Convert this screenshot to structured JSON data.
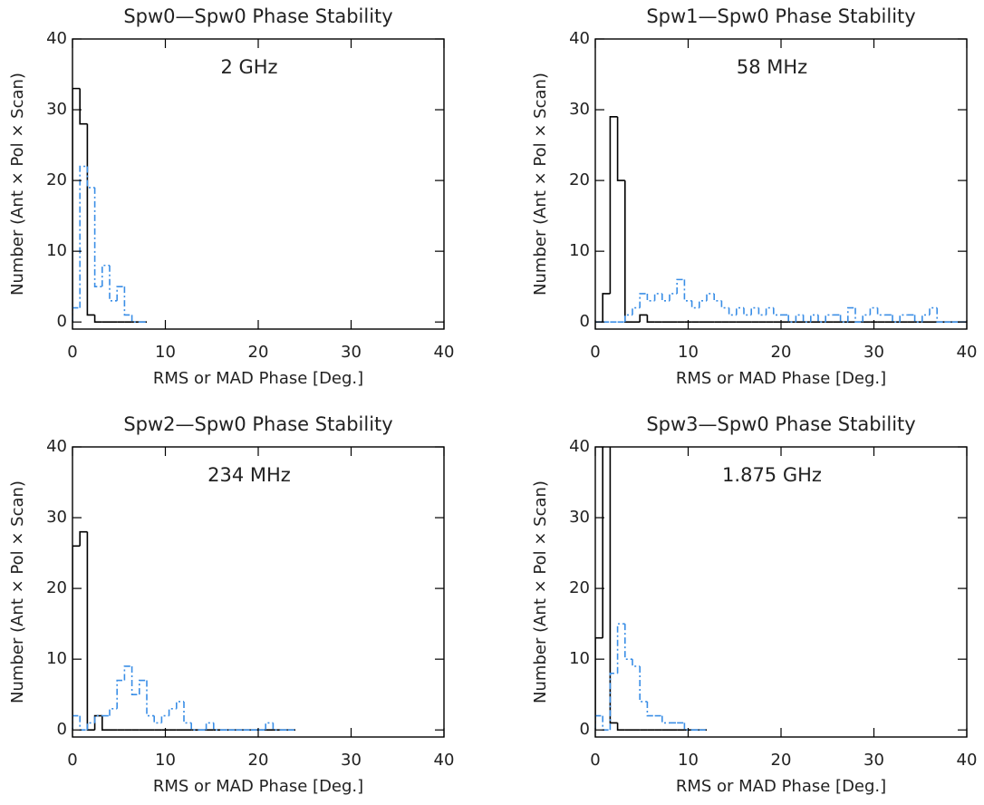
{
  "chart_data": [
    {
      "type": "histogram",
      "title": "Spw0—Spw0 Phase Stability",
      "annotation": "2 GHz",
      "xlabel": "RMS or MAD Phase [Deg.]",
      "ylabel": "Number (Ant × Pol × Scan)",
      "bins": [
        0,
        0.8,
        1.6,
        2.4,
        3.2,
        4.0,
        4.8,
        5.6,
        6.4,
        7.2,
        8.0
      ],
      "series": [
        {
          "color": "#000000",
          "linestyle": "solid",
          "values": [
            33,
            28,
            1,
            0,
            0,
            0,
            0,
            0,
            0,
            0
          ]
        },
        {
          "color": "#3a8ee6",
          "linestyle": "dashdot",
          "values": [
            2,
            22,
            19,
            5,
            8,
            3,
            5,
            1,
            0,
            0
          ]
        }
      ],
      "xlim": [
        0,
        40
      ],
      "ylim": [
        -1,
        40
      ],
      "xticks": [
        0,
        10,
        20,
        30,
        40
      ],
      "yticks": [
        0,
        10,
        20,
        30,
        40
      ]
    },
    {
      "type": "histogram",
      "title": "Spw1—Spw0 Phase Stability",
      "annotation": "58 MHz",
      "xlabel": "RMS or MAD Phase [Deg.]",
      "ylabel": "Number (Ant × Pol × Scan)",
      "bins": [
        0,
        0.8,
        1.6,
        2.4,
        3.2,
        4.0,
        4.8,
        5.6,
        6.4,
        7.2,
        8.0,
        8.8,
        9.6,
        10.4,
        11.2,
        12.0,
        12.8,
        13.6,
        14.4,
        15.2,
        16.0,
        16.8,
        17.6,
        18.4,
        19.2,
        20.0,
        20.8,
        21.6,
        22.4,
        23.2,
        24.0,
        24.8,
        25.6,
        26.4,
        27.2,
        28.0,
        28.8,
        29.6,
        30.4,
        31.2,
        32.0,
        32.8,
        33.6,
        34.4,
        35.2,
        36.0,
        36.8,
        37.6,
        38.4,
        39.2,
        40.0
      ],
      "series": [
        {
          "color": "#000000",
          "linestyle": "solid",
          "values": [
            0,
            4,
            29,
            20,
            0,
            0,
            1,
            0,
            0,
            0,
            0,
            0,
            0,
            0,
            0,
            0,
            0,
            0,
            0,
            0,
            0,
            0,
            0,
            0,
            0,
            0,
            0,
            0,
            0,
            0,
            0,
            0,
            0,
            0,
            0,
            0,
            0,
            0,
            0,
            0,
            0,
            0,
            0,
            0,
            0,
            0,
            0,
            0,
            0,
            0
          ]
        },
        {
          "color": "#3a8ee6",
          "linestyle": "dashdot",
          "values": [
            0,
            0,
            0,
            0,
            1,
            2,
            4,
            3,
            4,
            3,
            4,
            6,
            3,
            2,
            3,
            4,
            3,
            2,
            1,
            2,
            1,
            2,
            1,
            2,
            1,
            1,
            0,
            1,
            0,
            1,
            0,
            1,
            1,
            0,
            2,
            0,
            1,
            2,
            1,
            1,
            0,
            1,
            1,
            0,
            1,
            2,
            0,
            0,
            0,
            0
          ]
        }
      ],
      "xlim": [
        0,
        40
      ],
      "ylim": [
        -1,
        40
      ],
      "xticks": [
        0,
        10,
        20,
        30,
        40
      ],
      "yticks": [
        0,
        10,
        20,
        30,
        40
      ]
    },
    {
      "type": "histogram",
      "title": "Spw2—Spw0 Phase Stability",
      "annotation": "234 MHz",
      "xlabel": "RMS or MAD Phase [Deg.]",
      "ylabel": "Number (Ant × Pol × Scan)",
      "bins": [
        0,
        0.8,
        1.6,
        2.4,
        3.2,
        4.0,
        4.8,
        5.6,
        6.4,
        7.2,
        8.0,
        8.8,
        9.6,
        10.4,
        11.2,
        12.0,
        12.8,
        13.6,
        14.4,
        15.2,
        16.0,
        16.8,
        17.6,
        18.4,
        19.2,
        20.0,
        20.8,
        21.6,
        22.4,
        23.2,
        24.0
      ],
      "series": [
        {
          "color": "#000000",
          "linestyle": "solid",
          "values": [
            26,
            28,
            0,
            2,
            0,
            0,
            0,
            0,
            0,
            0,
            0,
            0,
            0,
            0,
            0,
            0,
            0,
            0,
            0,
            0,
            0,
            0,
            0,
            0,
            0,
            0,
            0,
            0,
            0,
            0
          ]
        },
        {
          "color": "#3a8ee6",
          "linestyle": "dashdot",
          "values": [
            2,
            0,
            1,
            2,
            2,
            3,
            7,
            9,
            5,
            7,
            2,
            1,
            2,
            3,
            4,
            1,
            0,
            0,
            1,
            0,
            0,
            0,
            0,
            0,
            0,
            0,
            1,
            0,
            0,
            0
          ]
        }
      ],
      "xlim": [
        0,
        40
      ],
      "ylim": [
        -1,
        40
      ],
      "xticks": [
        0,
        10,
        20,
        30,
        40
      ],
      "yticks": [
        0,
        10,
        20,
        30,
        40
      ]
    },
    {
      "type": "histogram",
      "title": "Spw3—Spw0 Phase Stability",
      "annotation": "1.875 GHz",
      "xlabel": "RMS or MAD Phase [Deg.]",
      "ylabel": "Number (Ant × Pol × Scan)",
      "bins": [
        0,
        0.8,
        1.6,
        2.4,
        3.2,
        4.0,
        4.8,
        5.6,
        6.4,
        7.2,
        8.0,
        8.8,
        9.6,
        10.4,
        11.2,
        12.0
      ],
      "series": [
        {
          "color": "#000000",
          "linestyle": "solid",
          "values": [
            13,
            42,
            1,
            0,
            0,
            0,
            0,
            0,
            0,
            0,
            0,
            0,
            0,
            0,
            0
          ]
        },
        {
          "color": "#3a8ee6",
          "linestyle": "dashdot",
          "values": [
            2,
            0,
            8,
            15,
            10,
            9,
            4,
            2,
            2,
            1,
            1,
            1,
            0,
            0,
            0
          ]
        }
      ],
      "xlim": [
        0,
        40
      ],
      "ylim": [
        -1,
        40
      ],
      "xticks": [
        0,
        10,
        20,
        30,
        40
      ],
      "yticks": [
        0,
        10,
        20,
        30,
        40
      ]
    }
  ]
}
